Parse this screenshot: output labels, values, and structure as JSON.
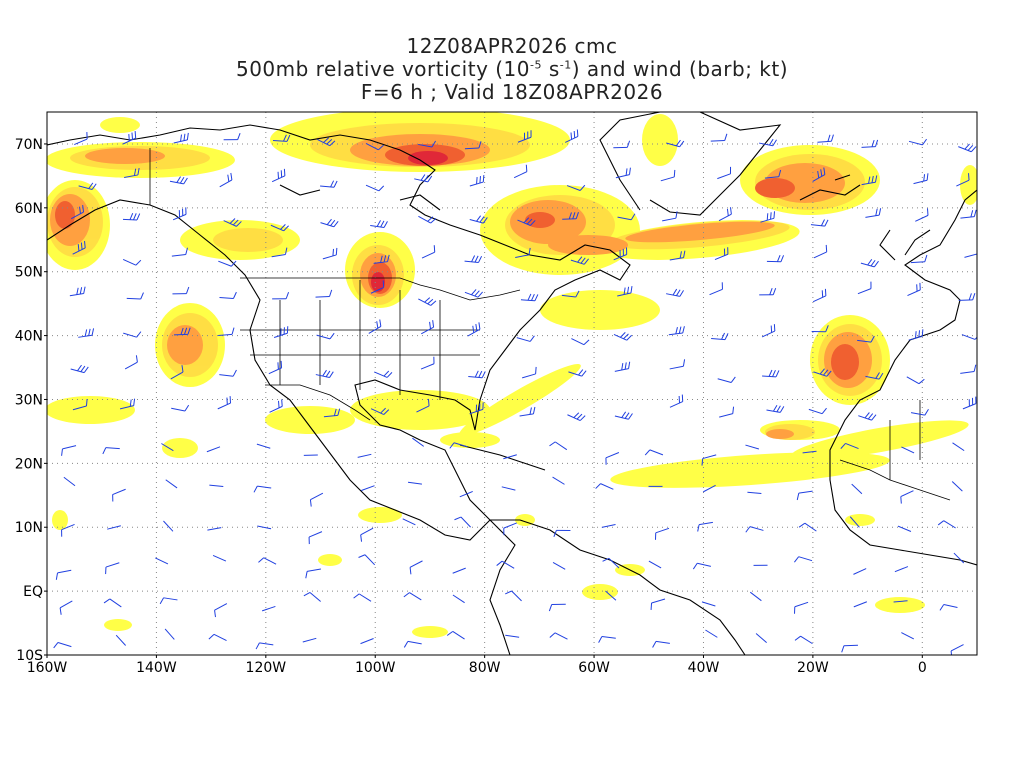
{
  "title": {
    "line1": "12Z08APR2026 cmc",
    "line2_prefix": "500mb relative vorticity (10",
    "line2_exp1": "-5",
    "line2_mid": " s",
    "line2_exp2": "-1",
    "line2_suffix": ") and wind (barb; kt)",
    "line3": "F=6 h ; Valid 18Z08APR2026"
  },
  "axes": {
    "lat_labels": [
      "70N",
      "60N",
      "50N",
      "40N",
      "30N",
      "20N",
      "10N",
      "EQ",
      "10S"
    ],
    "lon_labels": [
      "160W",
      "140W",
      "120W",
      "100W",
      "80W",
      "60W",
      "40W",
      "20W",
      "0"
    ],
    "lat_range": [
      -10,
      75
    ],
    "lon_range": [
      -160,
      10
    ]
  },
  "colors": {
    "shade_light": "#ffff33",
    "shade_yellow": "#ffdd44",
    "shade_orange": "#ffa040",
    "shade_deep": "#f06030",
    "shade_red": "#e02838",
    "barb": "#2040e0",
    "coast": "#000000",
    "grid": "#888888"
  },
  "features": {
    "vorticity_maxima": [
      {
        "lat": 67,
        "lon": -92,
        "level": "red"
      },
      {
        "lat": 48,
        "lon": -100,
        "level": "red"
      },
      {
        "lat": 62,
        "lon": -27,
        "level": "deep"
      },
      {
        "lat": 36,
        "lon": -14,
        "level": "deep"
      },
      {
        "lat": 39,
        "lon": -133,
        "level": "orange"
      },
      {
        "lat": 65,
        "lon": -148,
        "level": "orange"
      }
    ]
  }
}
